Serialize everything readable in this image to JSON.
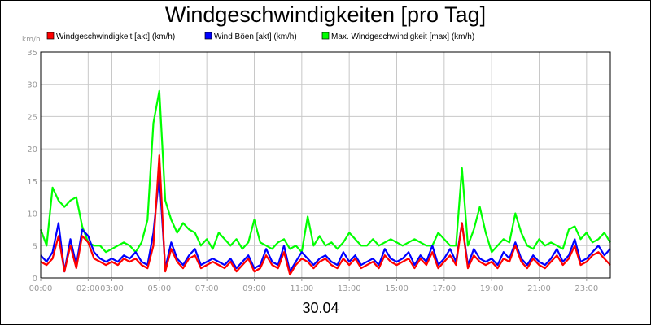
{
  "chart_data": {
    "type": "line",
    "title": "Windgeschwindigkeiten [pro Tag]",
    "ylabel": "km/h",
    "xlabel": "",
    "date_label": "30.04",
    "ylim": [
      0,
      35
    ],
    "yticks": [
      0,
      5,
      10,
      15,
      20,
      25,
      30,
      35
    ],
    "xlim": [
      0,
      24
    ],
    "xtick_labels": [
      "00:00",
      "02:00",
      "03:00",
      "05:00",
      "07:00",
      "09:00",
      "11:00",
      "13:00",
      "15:00",
      "17:00",
      "19:00",
      "21:00",
      "23:00"
    ],
    "xtick_hours": [
      0,
      2,
      3,
      5,
      7,
      9,
      11,
      13,
      15,
      17,
      19,
      21,
      23
    ],
    "grid": true,
    "legend_position": "top",
    "x_hours": [
      0,
      0.25,
      0.5,
      0.75,
      1,
      1.25,
      1.5,
      1.75,
      2,
      2.25,
      2.5,
      2.75,
      3,
      3.25,
      3.5,
      3.75,
      4,
      4.25,
      4.5,
      4.75,
      5,
      5.25,
      5.5,
      5.75,
      6,
      6.25,
      6.5,
      6.75,
      7,
      7.25,
      7.5,
      7.75,
      8,
      8.25,
      8.5,
      8.75,
      9,
      9.25,
      9.5,
      9.75,
      10,
      10.25,
      10.5,
      10.75,
      11,
      11.25,
      11.5,
      11.75,
      12,
      12.25,
      12.5,
      12.75,
      13,
      13.25,
      13.5,
      13.75,
      14,
      14.25,
      14.5,
      14.75,
      15,
      15.25,
      15.5,
      15.75,
      16,
      16.25,
      16.5,
      16.75,
      17,
      17.25,
      17.5,
      17.75,
      18,
      18.25,
      18.5,
      18.75,
      19,
      19.25,
      19.5,
      19.75,
      20,
      20.25,
      20.5,
      20.75,
      21,
      21.25,
      21.5,
      21.75,
      22,
      22.25,
      22.5,
      22.75,
      23,
      23.25,
      23.5,
      23.75,
      24
    ],
    "series": [
      {
        "name": "Max. Windgeschwindigkeit [max] (km/h)",
        "color": "#00ff00",
        "values": [
          7.5,
          5,
          14,
          12,
          11,
          12,
          12.5,
          8,
          5.5,
          5,
          5,
          4,
          4.5,
          5,
          5.5,
          5,
          4,
          5.5,
          9,
          24,
          29,
          12,
          9,
          7,
          8.5,
          7.5,
          7,
          5,
          6,
          4.5,
          7,
          6,
          5,
          6,
          4.5,
          5.5,
          9,
          5.5,
          5,
          4.5,
          5.5,
          6,
          4.5,
          5,
          4,
          9.5,
          5,
          6.5,
          5,
          5.5,
          4.5,
          5.5,
          7,
          6,
          5,
          5,
          6,
          5,
          5.5,
          6,
          5.5,
          5,
          5.5,
          6,
          5.5,
          5,
          5,
          7,
          6,
          5,
          5,
          17,
          5,
          7.5,
          11,
          7,
          4,
          5,
          6,
          5.5,
          10,
          7,
          5,
          4.5,
          6,
          5,
          5.5,
          5,
          4.5,
          7.5,
          8,
          6,
          7,
          5.5,
          6,
          7,
          5.5
        ]
      },
      {
        "name": "Wind Böen [akt] (km/h)",
        "color": "#0000ff",
        "values": [
          3.5,
          2.5,
          4,
          8.5,
          1,
          6,
          2,
          7.5,
          6.5,
          4,
          3,
          2.5,
          3,
          2.5,
          3.5,
          3,
          4,
          2.5,
          2,
          7,
          16,
          1.5,
          5.5,
          3,
          2,
          3.5,
          4.5,
          2,
          2.5,
          3,
          2.5,
          2,
          3,
          1.5,
          2.5,
          3.5,
          1.5,
          2,
          4.5,
          2.5,
          2,
          5,
          1,
          2.5,
          4,
          3,
          2,
          3,
          3.5,
          2.5,
          2,
          4,
          2.5,
          3.5,
          2,
          2.5,
          3,
          2,
          4.5,
          3,
          2.5,
          3,
          4,
          2,
          3.5,
          2.5,
          5,
          2,
          3,
          4.5,
          2.5,
          8.5,
          2,
          4.5,
          3,
          2.5,
          3,
          2,
          4,
          3,
          5.5,
          3,
          2,
          3.5,
          2.5,
          2,
          3,
          4.5,
          2.5,
          3.5,
          6,
          2.5,
          3,
          4,
          5,
          3.5,
          4.5
        ]
      },
      {
        "name": "Windgeschwindigkeit [akt] (km/h)",
        "color": "#ff0000",
        "values": [
          2.5,
          2,
          3,
          6.5,
          1,
          5,
          1.5,
          6.5,
          5.5,
          3,
          2.5,
          2,
          2.5,
          2,
          3,
          2.5,
          3,
          2,
          1.5,
          5,
          19,
          1,
          4.5,
          2.5,
          1.5,
          3,
          3.5,
          1.5,
          2,
          2.5,
          2,
          1.5,
          2.5,
          1,
          2,
          3,
          1,
          1.5,
          3.5,
          2,
          1.5,
          4,
          0.5,
          2,
          3,
          2.5,
          1.5,
          2.5,
          3,
          2,
          1.5,
          3,
          2,
          3,
          1.5,
          2,
          2.5,
          1.5,
          3.5,
          2.5,
          2,
          2.5,
          3,
          1.5,
          3,
          2,
          4,
          1.5,
          2.5,
          3.5,
          2,
          8.5,
          1.5,
          3.5,
          2.5,
          2,
          2.5,
          1.5,
          3,
          2.5,
          5,
          2.5,
          1.5,
          3,
          2,
          1.5,
          2.5,
          3.5,
          2,
          3,
          5,
          2,
          2.5,
          3.5,
          4,
          3,
          2
        ]
      }
    ]
  }
}
